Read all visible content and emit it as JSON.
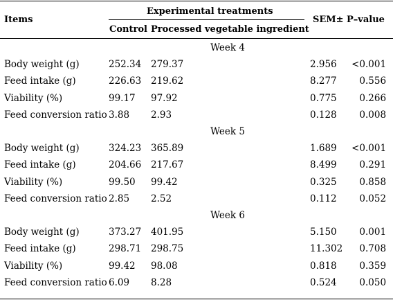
{
  "header": {
    "items": "Items",
    "experimental_treatments": "Experimental treatments",
    "control": "Control",
    "processed": "Processed vegetable ingredient",
    "sem": "SEM±",
    "pvalue": "P–value"
  },
  "sections": [
    {
      "week": "Week 4",
      "rows": [
        {
          "item": "Body weight (g)",
          "control": "252.34",
          "processed": "279.37",
          "sem": "2.956",
          "p": "<0.001"
        },
        {
          "item": "Feed intake (g)",
          "control": "226.63",
          "processed": "219.62",
          "sem": "8.277",
          "p": "0.556"
        },
        {
          "item": "Viability (%)",
          "control": "99.17",
          "processed": "97.92",
          "sem": "0.775",
          "p": "0.266"
        },
        {
          "item": "Feed conversion ratio",
          "control": "3.88",
          "processed": "2.93",
          "sem": "0.128",
          "p": "0.008"
        }
      ]
    },
    {
      "week": "Week 5",
      "rows": [
        {
          "item": "Body weight (g)",
          "control": "324.23",
          "processed": "365.89",
          "sem": "1.689",
          "p": "<0.001"
        },
        {
          "item": "Feed intake (g)",
          "control": "204.66",
          "processed": "217.67",
          "sem": "8.499",
          "p": "0.291"
        },
        {
          "item": "Viability (%)",
          "control": "99.50",
          "processed": "99.42",
          "sem": "0.325",
          "p": "0.858"
        },
        {
          "item": "Feed conversion ratio",
          "control": "2.85",
          "processed": "2.52",
          "sem": "0.112",
          "p": "0.052"
        }
      ]
    },
    {
      "week": "Week 6",
      "rows": [
        {
          "item": "Body weight (g)",
          "control": "373.27",
          "processed": "401.95",
          "sem": "5.150",
          "p": "0.001"
        },
        {
          "item": "Feed intake (g)",
          "control": "298.71",
          "processed": "298.75",
          "sem": "11.302",
          "p": "0.708"
        },
        {
          "item": "Viability (%)",
          "control": "99.42",
          "processed": "98.08",
          "sem": "0.818",
          "p": "0.359"
        },
        {
          "item": "Feed conversion ratio",
          "control": "6.09",
          "processed": "8.28",
          "sem": "0.524",
          "p": "0.050"
        }
      ]
    }
  ]
}
